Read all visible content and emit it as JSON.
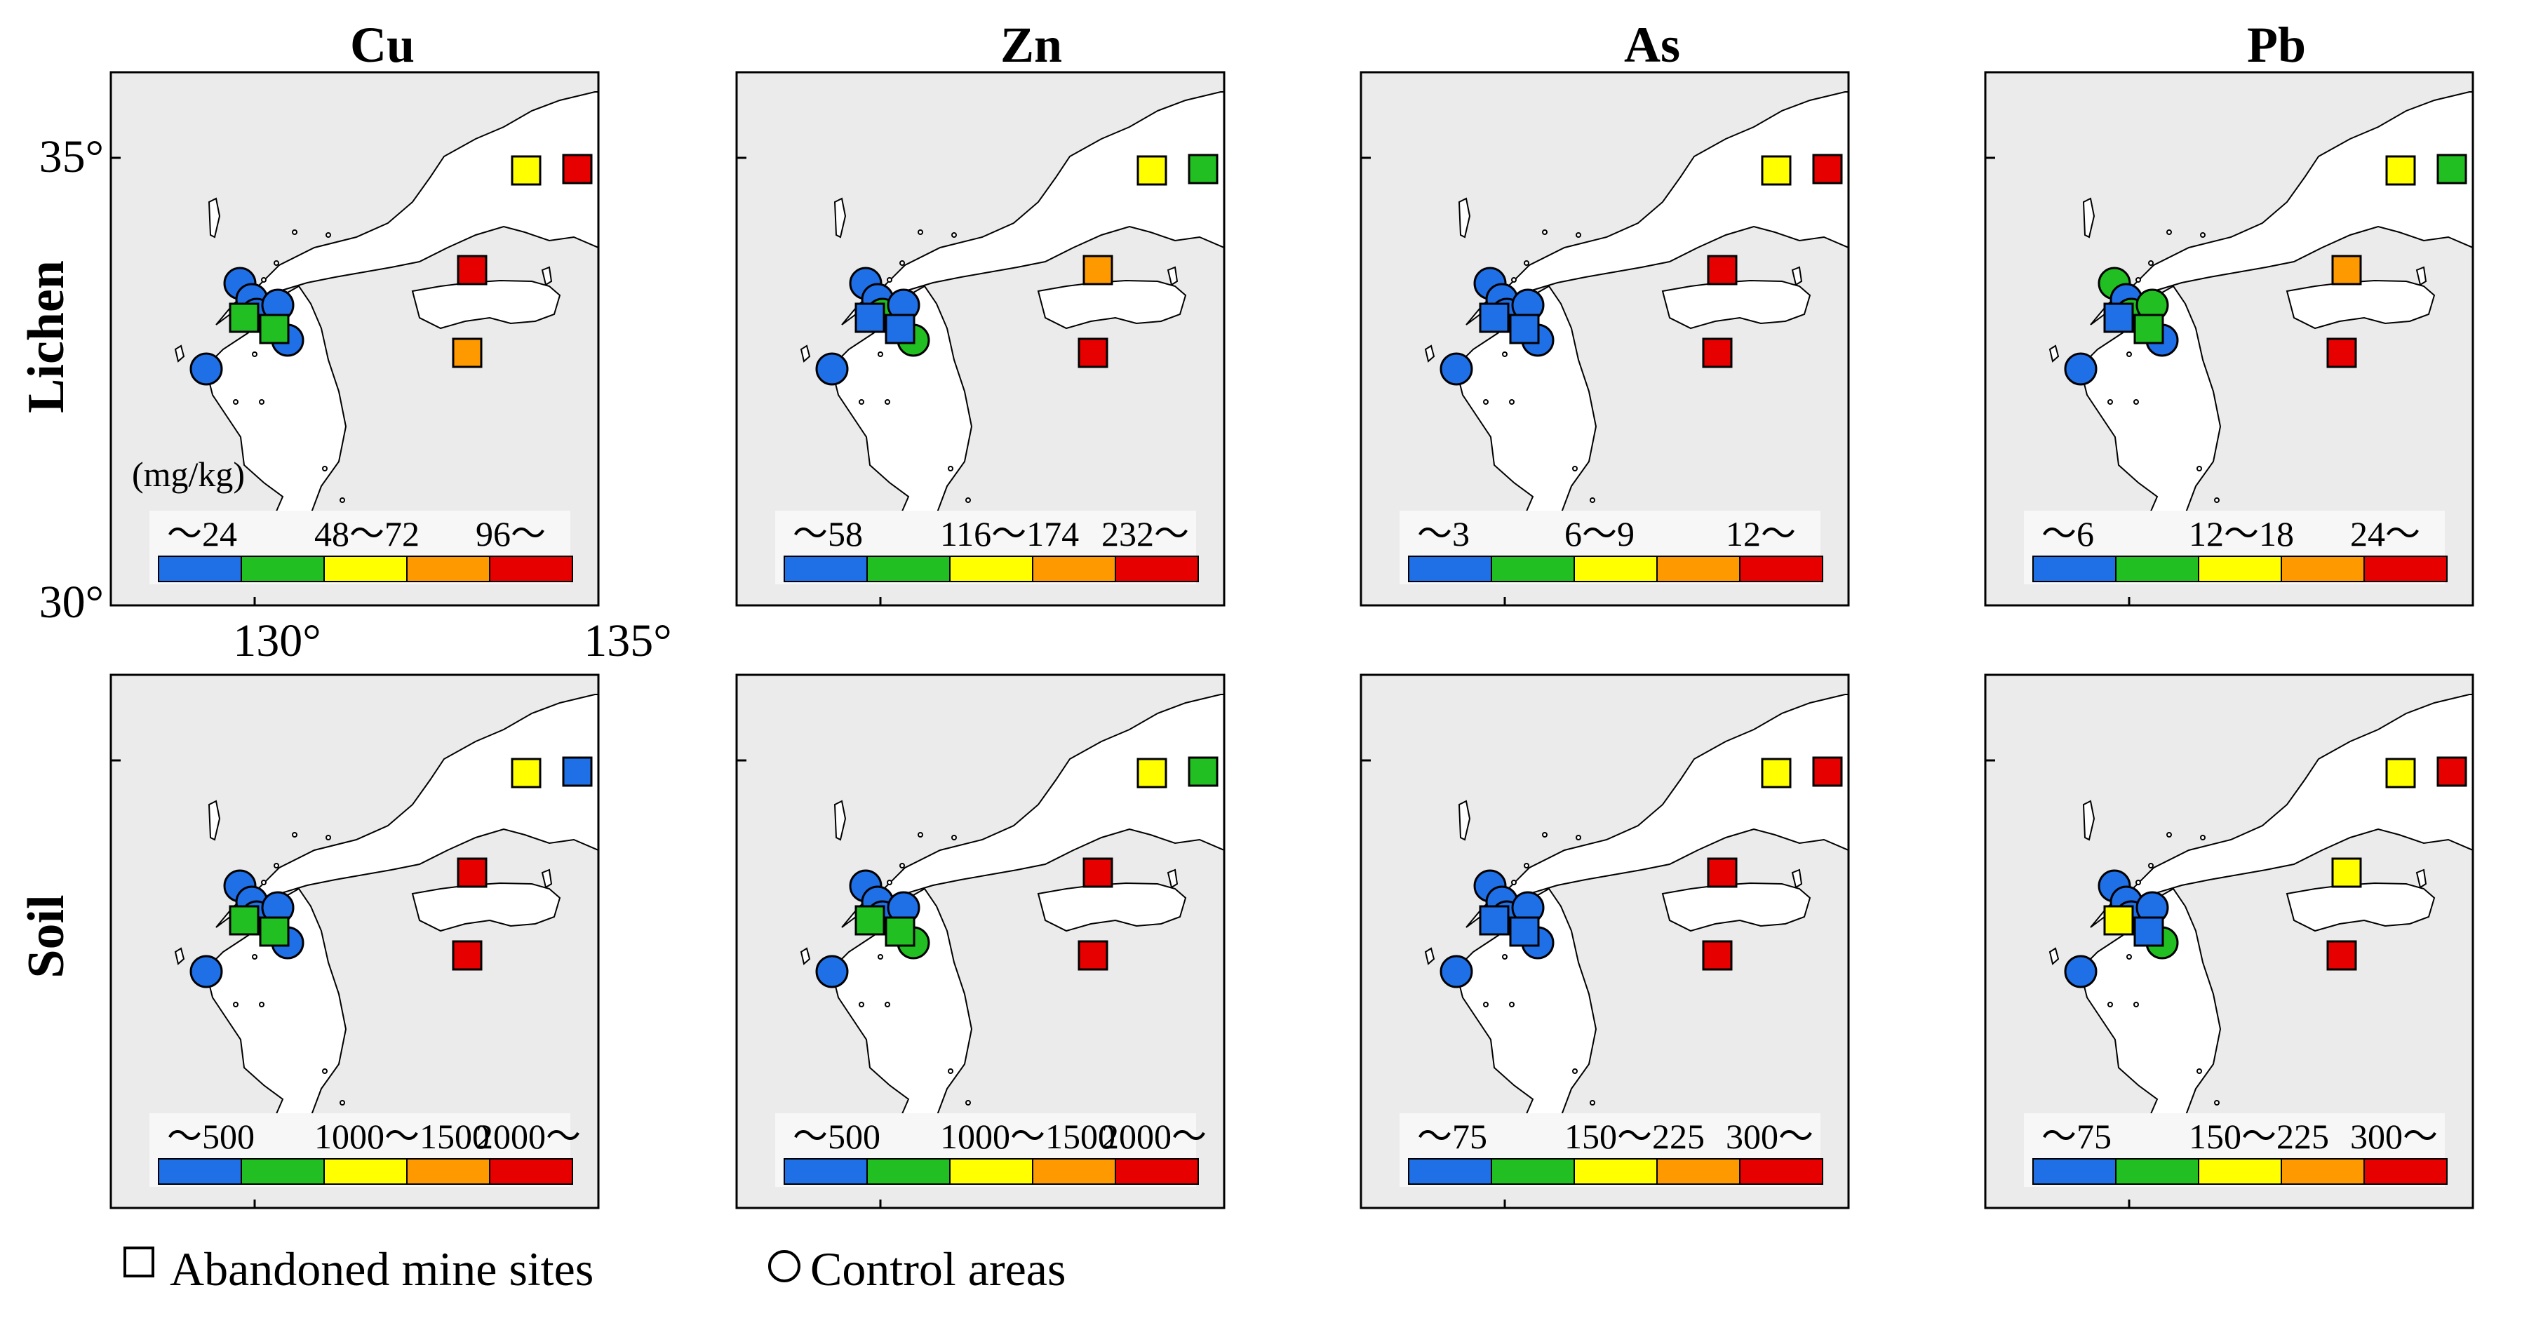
{
  "elements": [
    "Cu",
    "Zn",
    "As",
    "Pb"
  ],
  "media": [
    "Lichen",
    "Soil"
  ],
  "axis": {
    "lat_labels": [
      "35°",
      "30°"
    ],
    "lon_labels": [
      "130°",
      "135°"
    ]
  },
  "unit_label": "(mg/kg)",
  "colors": {
    "class1": "#1f6fe6",
    "class2": "#21bf21",
    "class3": "#ffff00",
    "class4": "#ff9900",
    "class5": "#e60000",
    "land": "#ffffff",
    "sea": "#ebebeb",
    "coast": "#000000"
  },
  "legend": {
    "mine_label": "Abandoned mine sites",
    "control_label": "Control areas"
  },
  "panels": [
    {
      "element": "Cu",
      "medium": "Lichen",
      "scale_labels": [
        "～24",
        "48～72",
        "96～"
      ],
      "sites": {
        "m1": 3,
        "m2": 5,
        "m3": 2,
        "m4": 2,
        "m5": 4,
        "m6": 5,
        "c1": 1,
        "c2": 1,
        "c3": 1,
        "c4": 1,
        "c5": 1,
        "c6": 1
      }
    },
    {
      "element": "Zn",
      "medium": "Lichen",
      "scale_labels": [
        "～58",
        "116～174",
        "232～"
      ],
      "sites": {
        "m1": 3,
        "m2": 2,
        "m3": 1,
        "m4": 1,
        "m5": 5,
        "m6": 4,
        "c1": 1,
        "c2": 1,
        "c3": 2,
        "c4": 1,
        "c5": 2,
        "c6": 1
      }
    },
    {
      "element": "As",
      "medium": "Lichen",
      "scale_labels": [
        "～3",
        "6～9",
        "12～"
      ],
      "sites": {
        "m1": 3,
        "m2": 5,
        "m3": 1,
        "m4": 1,
        "m5": 5,
        "m6": 5,
        "c1": 1,
        "c2": 1,
        "c3": 1,
        "c4": 1,
        "c5": 1,
        "c6": 1
      }
    },
    {
      "element": "Pb",
      "medium": "Lichen",
      "scale_labels": [
        "～6",
        "12～18",
        "24～"
      ],
      "sites": {
        "m1": 3,
        "m2": 2,
        "m3": 1,
        "m4": 2,
        "m5": 5,
        "m6": 4,
        "c1": 2,
        "c2": 1,
        "c3": 2,
        "c4": 2,
        "c5": 1,
        "c6": 1
      }
    },
    {
      "element": "Cu",
      "medium": "Soil",
      "scale_labels": [
        "～500",
        "1000～1500",
        "2000～"
      ],
      "sites": {
        "m1": 3,
        "m2": 1,
        "m3": 2,
        "m4": 2,
        "m5": 5,
        "m6": 5,
        "c1": 1,
        "c2": 1,
        "c3": 1,
        "c4": 1,
        "c5": 1,
        "c6": 1
      }
    },
    {
      "element": "Zn",
      "medium": "Soil",
      "scale_labels": [
        "～500",
        "1000～1500",
        "2000～"
      ],
      "sites": {
        "m1": 3,
        "m2": 2,
        "m3": 2,
        "m4": 2,
        "m5": 5,
        "m6": 5,
        "c1": 1,
        "c2": 1,
        "c3": 1,
        "c4": 1,
        "c5": 2,
        "c6": 1
      }
    },
    {
      "element": "As",
      "medium": "Soil",
      "scale_labels": [
        "～75",
        "150～225",
        "300～"
      ],
      "sites": {
        "m1": 3,
        "m2": 5,
        "m3": 1,
        "m4": 1,
        "m5": 5,
        "m6": 5,
        "c1": 1,
        "c2": 1,
        "c3": 1,
        "c4": 1,
        "c5": 1,
        "c6": 1
      }
    },
    {
      "element": "Pb",
      "medium": "Soil",
      "scale_labels": [
        "～75",
        "150～225",
        "300～"
      ],
      "sites": {
        "m1": 3,
        "m2": 5,
        "m3": 3,
        "m4": 1,
        "m5": 5,
        "m6": 3,
        "c1": 1,
        "c2": 1,
        "c3": 1,
        "c4": 1,
        "c5": 2,
        "c6": 1
      }
    }
  ]
}
